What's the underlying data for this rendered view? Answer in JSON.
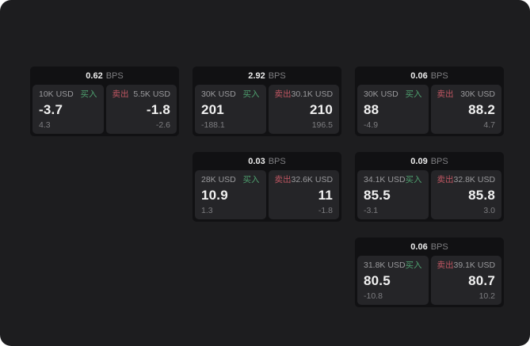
{
  "labels": {
    "bps": "BPS",
    "buy": "买入",
    "sell": "卖出"
  },
  "colors": {
    "surface": "#1d1d1f",
    "card": "#111113",
    "panel": "#252528",
    "buy": "#4ea06f",
    "sell": "#c05662"
  },
  "cards": [
    {
      "bps": "0.62",
      "buy": {
        "amount": "10K USD",
        "value": "-3.7",
        "sub": "4.3"
      },
      "sell": {
        "amount": "5.5K USD",
        "value": "-1.8",
        "sub": "-2.6"
      }
    },
    {
      "bps": "2.92",
      "buy": {
        "amount": "30K USD",
        "value": "201",
        "sub": "-188.1"
      },
      "sell": {
        "amount": "30.1K USD",
        "value": "210",
        "sub": "196.5"
      }
    },
    {
      "bps": "0.06",
      "buy": {
        "amount": "30K USD",
        "value": "88",
        "sub": "-4.9"
      },
      "sell": {
        "amount": "30K USD",
        "value": "88.2",
        "sub": "4.7"
      }
    },
    {
      "bps": "0.03",
      "buy": {
        "amount": "28K USD",
        "value": "10.9",
        "sub": "1.3"
      },
      "sell": {
        "amount": "32.6K USD",
        "value": "11",
        "sub": "-1.8"
      }
    },
    {
      "bps": "0.09",
      "buy": {
        "amount": "34.1K USD",
        "value": "85.5",
        "sub": "-3.1"
      },
      "sell": {
        "amount": "32.8K USD",
        "value": "85.8",
        "sub": "3.0"
      }
    },
    {
      "bps": "0.06",
      "buy": {
        "amount": "31.8K USD",
        "value": "80.5",
        "sub": "-10.8"
      },
      "sell": {
        "amount": "39.1K USD",
        "value": "80.7",
        "sub": "10.2"
      }
    }
  ]
}
